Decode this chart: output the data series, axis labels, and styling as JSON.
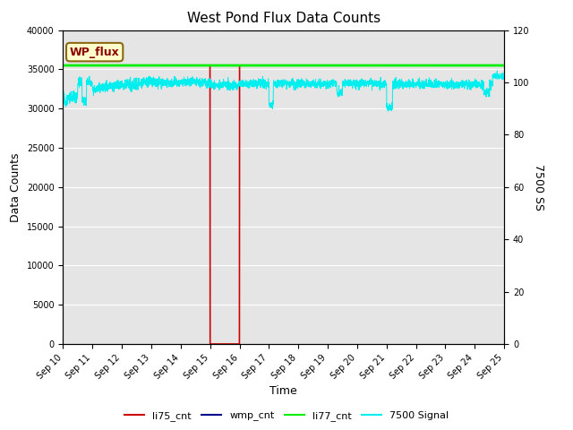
{
  "title": "West Pond Flux Data Counts",
  "ylabel_left": "Data Counts",
  "ylabel_right": "7500 SS",
  "xlabel": "Time",
  "ylim_left": [
    0,
    40000
  ],
  "ylim_right": [
    0,
    120
  ],
  "x_tick_labels": [
    "Sep 10",
    "Sep 11",
    "Sep 12",
    "Sep 13",
    "Sep 14",
    "Sep 15",
    "Sep 16",
    "Sep 17",
    "Sep 18",
    "Sep 19",
    "Sep 20",
    "Sep 21",
    "Sep 22",
    "Sep 23",
    "Sep 24",
    "Sep 25"
  ],
  "background_color": "#e5e5e5",
  "annotation_box_text": "WP_flux",
  "annotation_box_facecolor": "#ffffcc",
  "annotation_box_edgecolor": "#8b6914",
  "annotation_box_textcolor": "#8b0000",
  "li75_color": "#cc0000",
  "wmp_color": "#00008b",
  "li77_color": "#00ee00",
  "signal_color": "#00eeee",
  "li77_level": 35500,
  "title_fontsize": 11,
  "axis_label_fontsize": 9,
  "tick_fontsize": 7,
  "legend_fontsize": 8
}
